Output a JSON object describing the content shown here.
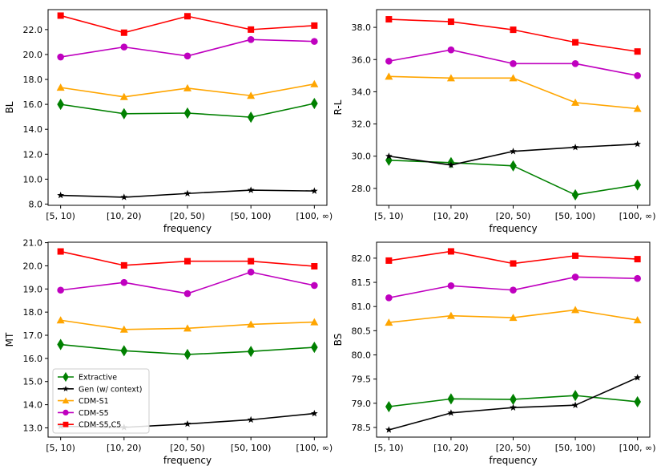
{
  "chart_data": [
    {
      "type": "line",
      "ylabel": "BL",
      "xlabel": "frequency",
      "categories": [
        "[5, 10)",
        "[10, 20)",
        "[20, 50)",
        "[50, 100)",
        "[100, ∞)"
      ],
      "yticks": [
        "8.0",
        "10.0",
        "12.0",
        "14.0",
        "16.0",
        "18.0",
        "20.0",
        "22.0"
      ],
      "yrange": [
        7.9,
        23.6
      ],
      "legend": false,
      "series": [
        {
          "name": "Extractive",
          "values": [
            16.0,
            15.25,
            15.3,
            14.97,
            16.07
          ]
        },
        {
          "name": "Gen (w/ context)",
          "values": [
            8.7,
            8.55,
            8.85,
            9.12,
            9.05
          ]
        },
        {
          "name": "CDM-S1",
          "values": [
            17.35,
            16.6,
            17.3,
            16.7,
            17.63
          ]
        },
        {
          "name": "CDM-S5",
          "values": [
            19.8,
            20.6,
            19.88,
            21.2,
            21.05
          ]
        },
        {
          "name": "CDM-S5,C5",
          "values": [
            23.12,
            21.75,
            23.07,
            22.0,
            22.32
          ]
        }
      ]
    },
    {
      "type": "line",
      "ylabel": "R-L",
      "xlabel": "frequency",
      "categories": [
        "[5, 10)",
        "[10, 20)",
        "[20, 50)",
        "[50, 100)",
        "[100, ∞)"
      ],
      "yticks": [
        "28.0",
        "30.0",
        "32.0",
        "34.0",
        "36.0",
        "38.0"
      ],
      "yrange": [
        26.95,
        39.1
      ],
      "legend": false,
      "series": [
        {
          "name": "Extractive",
          "values": [
            29.75,
            29.6,
            29.4,
            27.6,
            28.22
          ]
        },
        {
          "name": "Gen (w/ context)",
          "values": [
            30.0,
            29.45,
            30.3,
            30.55,
            30.75
          ]
        },
        {
          "name": "CDM-S1",
          "values": [
            34.95,
            34.85,
            34.85,
            33.33,
            32.95
          ]
        },
        {
          "name": "CDM-S5",
          "values": [
            35.9,
            36.6,
            35.75,
            35.75,
            35.0
          ]
        },
        {
          "name": "CDM-S5,C5",
          "values": [
            38.5,
            38.35,
            37.85,
            37.07,
            36.5
          ]
        }
      ]
    },
    {
      "type": "line",
      "ylabel": "MT",
      "xlabel": "frequency",
      "categories": [
        "[5, 10)",
        "[10, 20)",
        "[20, 50)",
        "[50, 100)",
        "[100, ∞)"
      ],
      "yticks": [
        "13.0",
        "14.0",
        "15.0",
        "16.0",
        "17.0",
        "18.0",
        "19.0",
        "20.0",
        "21.0"
      ],
      "yrange": [
        12.6,
        21.02
      ],
      "legend": true,
      "series": [
        {
          "name": "Extractive",
          "values": [
            16.6,
            16.33,
            16.17,
            16.3,
            16.48
          ]
        },
        {
          "name": "Gen (w/ context)",
          "values": [
            13.07,
            13.02,
            13.17,
            13.35,
            13.62
          ]
        },
        {
          "name": "CDM-S1",
          "values": [
            17.65,
            17.25,
            17.3,
            17.47,
            17.57
          ]
        },
        {
          "name": "CDM-S5",
          "values": [
            18.95,
            19.28,
            18.8,
            19.73,
            19.15
          ]
        },
        {
          "name": "CDM-S5,C5",
          "values": [
            20.62,
            20.02,
            20.2,
            20.2,
            19.98
          ]
        }
      ]
    },
    {
      "type": "line",
      "ylabel": "BS",
      "xlabel": "frequency",
      "categories": [
        "[5, 10)",
        "[10, 20)",
        "[20, 50)",
        "[50, 100)",
        "[100, ∞)"
      ],
      "yticks": [
        "78.5",
        "79.0",
        "79.5",
        "80.0",
        "80.5",
        "81.0",
        "81.5",
        "82.0"
      ],
      "yrange": [
        78.3,
        82.33
      ],
      "legend": false,
      "series": [
        {
          "name": "Extractive",
          "values": [
            78.93,
            79.09,
            79.08,
            79.16,
            79.03
          ]
        },
        {
          "name": "Gen (w/ context)",
          "values": [
            78.45,
            78.8,
            78.91,
            78.96,
            79.53
          ]
        },
        {
          "name": "CDM-S1",
          "values": [
            80.67,
            80.81,
            80.77,
            80.93,
            80.72
          ]
        },
        {
          "name": "CDM-S5",
          "values": [
            81.18,
            81.43,
            81.34,
            81.61,
            81.58
          ]
        },
        {
          "name": "CDM-S5,C5",
          "values": [
            81.95,
            82.14,
            81.89,
            82.05,
            81.98
          ]
        }
      ]
    }
  ],
  "styles": {
    "Extractive": {
      "color": "#008000",
      "marker": "diamond"
    },
    "Gen (w/ context)": {
      "color": "#000000",
      "marker": "star"
    },
    "CDM-S1": {
      "color": "#ffa500",
      "marker": "triangle"
    },
    "CDM-S5": {
      "color": "#bf00bf",
      "marker": "circle"
    },
    "CDM-S5,C5": {
      "color": "#ff0000",
      "marker": "square"
    }
  }
}
